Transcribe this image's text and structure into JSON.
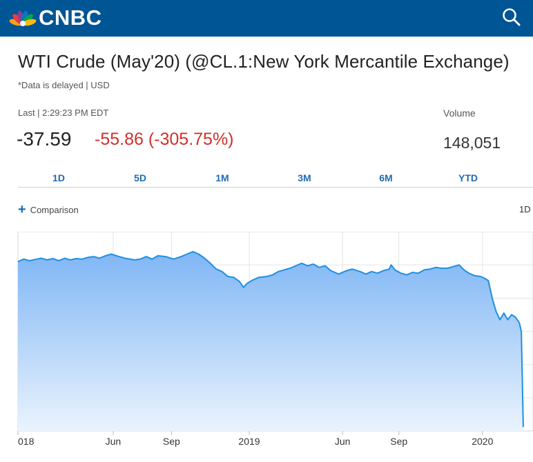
{
  "header": {
    "brand": "CNBC",
    "peacock_colors": [
      "#f9a11b",
      "#ee3b3b",
      "#8b3f97",
      "#0f75bc",
      "#00a651",
      "#fdb913"
    ],
    "search_icon": "search-icon"
  },
  "quote": {
    "title": "WTI Crude (May'20) (@CL.1:New York Mercantile Exchange)",
    "delay_note": "*Data is delayed | USD",
    "last_label": "Last | 2:29:23 PM EDT",
    "last_price": "-37.59",
    "change": "-55.86 (-305.75%)",
    "change_color": "#d1302a",
    "volume_label": "Volume",
    "volume_value": "148,051"
  },
  "tabs": [
    {
      "label": "1D"
    },
    {
      "label": "5D"
    },
    {
      "label": "1M"
    },
    {
      "label": "3M"
    },
    {
      "label": "6M"
    },
    {
      "label": "YTD"
    }
  ],
  "comparison": {
    "label": "Comparison",
    "range_label": "1D"
  },
  "chart_data": {
    "type": "area",
    "line_color": "#1e8fe0",
    "fill_color": "#7fb6f5",
    "grid": true,
    "x_ticks": [
      "018",
      "Jun",
      "Sep",
      "2019",
      "Jun",
      "Sep",
      "2020"
    ],
    "x_range": [
      0,
      26.5
    ],
    "y_range": [
      -40,
      80
    ],
    "series": [
      {
        "points": [
          [
            0.0,
            62
          ],
          [
            0.3,
            63.5
          ],
          [
            0.6,
            62.5
          ],
          [
            0.9,
            63.3
          ],
          [
            1.2,
            64
          ],
          [
            1.5,
            63
          ],
          [
            1.8,
            63.8
          ],
          [
            2.1,
            62.5
          ],
          [
            2.4,
            64
          ],
          [
            2.7,
            63
          ],
          [
            3.0,
            63.8
          ],
          [
            3.3,
            63.5
          ],
          [
            3.6,
            64.5
          ],
          [
            3.9,
            65
          ],
          [
            4.2,
            64
          ],
          [
            4.5,
            65.5
          ],
          [
            4.8,
            66.5
          ],
          [
            5.2,
            65
          ],
          [
            5.5,
            64
          ],
          [
            6.0,
            63
          ],
          [
            6.3,
            63.5
          ],
          [
            6.6,
            65
          ],
          [
            6.9,
            63.5
          ],
          [
            7.2,
            65.5
          ],
          [
            7.6,
            65
          ],
          [
            8.0,
            63.5
          ],
          [
            8.4,
            65
          ],
          [
            8.7,
            66.5
          ],
          [
            9.0,
            68
          ],
          [
            9.3,
            66.5
          ],
          [
            9.6,
            64
          ],
          [
            9.9,
            61
          ],
          [
            10.2,
            57.5
          ],
          [
            10.5,
            56
          ],
          [
            10.8,
            53
          ],
          [
            11.1,
            52.5
          ],
          [
            11.4,
            50
          ],
          [
            11.6,
            46.5
          ],
          [
            11.8,
            49
          ],
          [
            12.1,
            51
          ],
          [
            12.4,
            52.5
          ],
          [
            12.8,
            53
          ],
          [
            13.1,
            54
          ],
          [
            13.4,
            56
          ],
          [
            13.7,
            57
          ],
          [
            14.0,
            58
          ],
          [
            14.3,
            59.5
          ],
          [
            14.6,
            61
          ],
          [
            14.9,
            59.5
          ],
          [
            15.2,
            60.5
          ],
          [
            15.5,
            58.5
          ],
          [
            15.8,
            59.5
          ],
          [
            16.1,
            56.5
          ],
          [
            16.5,
            54.5
          ],
          [
            16.9,
            56.5
          ],
          [
            17.2,
            57.5
          ],
          [
            17.6,
            56
          ],
          [
            17.9,
            54.5
          ],
          [
            18.2,
            56
          ],
          [
            18.5,
            55
          ],
          [
            18.8,
            56.5
          ],
          [
            19.1,
            57.5
          ],
          [
            19.2,
            60
          ],
          [
            19.4,
            57
          ],
          [
            19.7,
            55
          ],
          [
            20.0,
            54
          ],
          [
            20.3,
            55.5
          ],
          [
            20.6,
            55
          ],
          [
            20.9,
            57
          ],
          [
            21.2,
            57.5
          ],
          [
            21.5,
            58.5
          ],
          [
            21.8,
            58
          ],
          [
            22.1,
            58
          ],
          [
            22.4,
            59
          ],
          [
            22.7,
            60
          ],
          [
            22.95,
            57
          ],
          [
            23.2,
            55
          ],
          [
            23.5,
            53.5
          ],
          [
            23.8,
            53
          ],
          [
            24.0,
            52
          ],
          [
            24.2,
            50.5
          ],
          [
            24.4,
            40
          ],
          [
            24.6,
            32
          ],
          [
            24.8,
            27
          ],
          [
            25.0,
            31
          ],
          [
            25.2,
            27
          ],
          [
            25.4,
            30
          ],
          [
            25.6,
            28.5
          ],
          [
            25.8,
            25
          ],
          [
            25.9,
            20
          ],
          [
            26.0,
            -37.59
          ]
        ]
      }
    ]
  }
}
